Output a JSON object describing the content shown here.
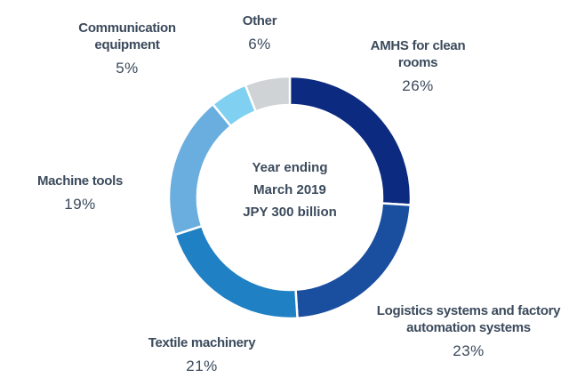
{
  "chart_data": {
    "type": "donut",
    "center_text": [
      "Year ending",
      "March 2019",
      "JPY 300 billion"
    ],
    "categories": [
      "AMHS for clean rooms",
      "Logistics systems and factory automation systems",
      "Textile machinery",
      "Machine tools",
      "Communication equipment",
      "Other"
    ],
    "values": [
      26,
      23,
      21,
      19,
      5,
      6
    ],
    "value_labels": [
      "26%",
      "23%",
      "21%",
      "19%",
      "5%",
      "6%"
    ],
    "colors": [
      "#0b2a80",
      "#1a4f9f",
      "#1f80c4",
      "#6aaee0",
      "#80d0f2",
      "#cfd3d6"
    ]
  }
}
